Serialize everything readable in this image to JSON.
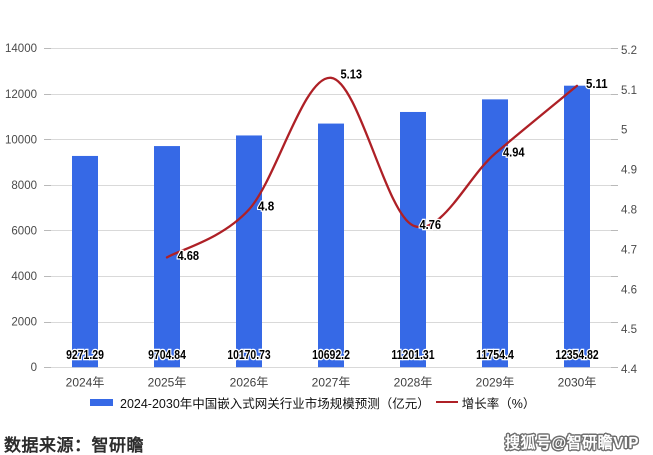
{
  "chart_data": {
    "type": "combo-bar-line",
    "categories": [
      "2024年",
      "2025年",
      "2026年",
      "2027年",
      "2028年",
      "2029年",
      "2030年"
    ],
    "series": [
      {
        "name": "2024-2030年中国嵌入式网关行业市场规模预测（亿元）",
        "type": "bar",
        "axis": "left",
        "color": "#3669E6",
        "values": [
          9271.29,
          9704.84,
          10170.73,
          10692.2,
          11201.31,
          11754.4,
          12354.82
        ],
        "labels": [
          "9271.29",
          "9704.84",
          "10170.73",
          "10692.2",
          "11201.31",
          "11754.4",
          "12354.82"
        ]
      },
      {
        "name": "增长率（%）",
        "type": "line",
        "axis": "right",
        "color": "#AE2026",
        "values": [
          null,
          4.68,
          4.8,
          5.13,
          4.76,
          4.94,
          5.11
        ],
        "labels": [
          null,
          "4.68",
          "4.8",
          "5.13",
          "4.76",
          "4.94",
          "5.11"
        ]
      }
    ],
    "left_axis": {
      "min": 0,
      "max": 14000,
      "tick_labels": [
        "0",
        "2000",
        "4000",
        "6000",
        "8000",
        "10000",
        "12000",
        "14000"
      ]
    },
    "right_axis": {
      "min": 4.4,
      "max": 5.2,
      "tick_labels": [
        "4.4",
        "4.5",
        "4.6",
        "4.7",
        "4.8",
        "4.9",
        "5",
        "5.1",
        "5.2"
      ]
    },
    "grid": true,
    "legend_position": "bottom",
    "title": ""
  },
  "legend": {
    "bar_label": "2024-2030年中国嵌入式网关行业市场规模预测（亿元）",
    "line_label": "增长率（%）"
  },
  "footer": {
    "source": "数据来源：智研瞻"
  },
  "watermark": {
    "text": "搜狐号@智研瞻VIP"
  },
  "colors": {
    "bar": "#3669E6",
    "line": "#AE2026",
    "grid": "#D9D9D9",
    "axis_text": "#4a4a4a"
  }
}
